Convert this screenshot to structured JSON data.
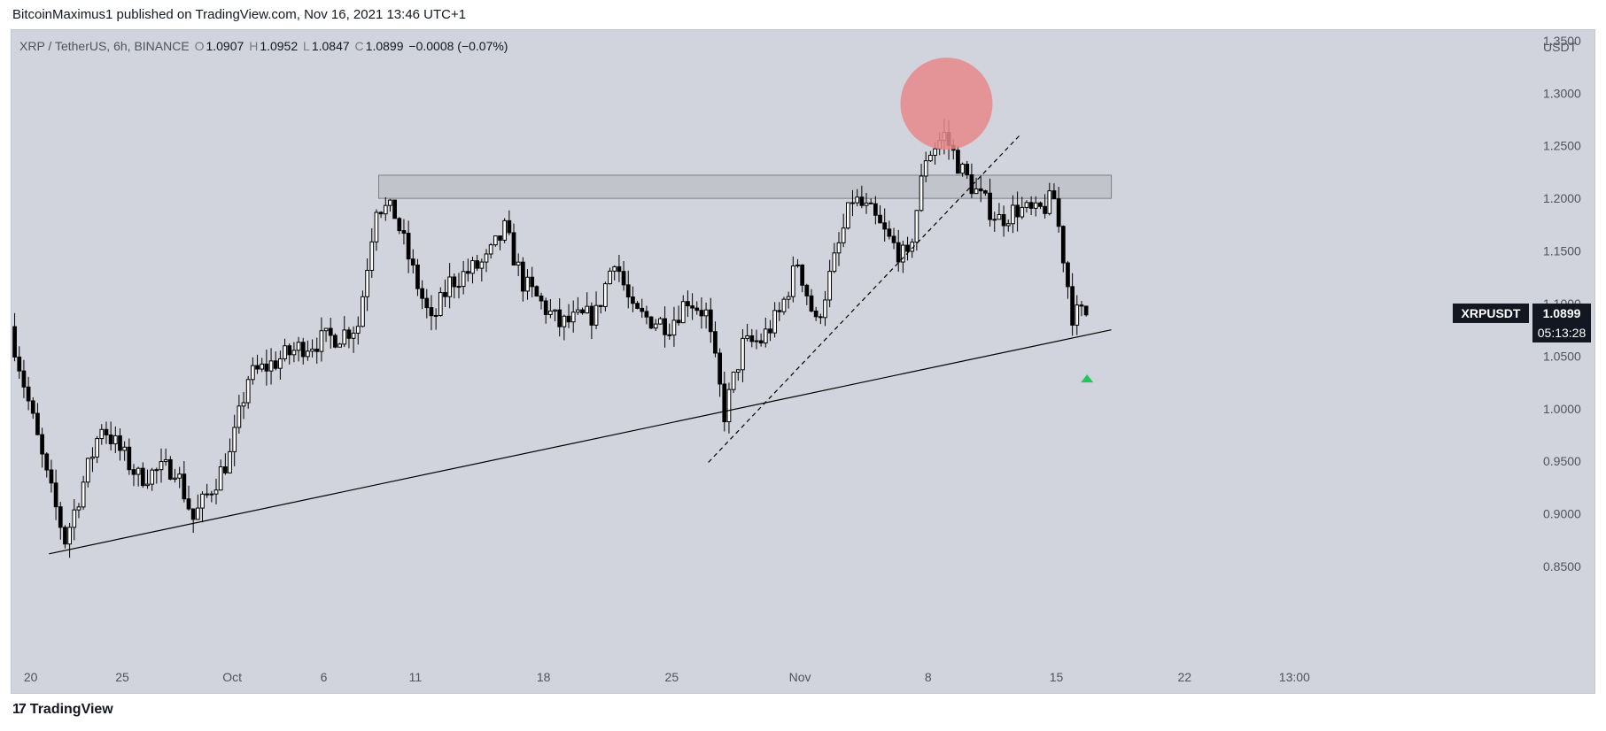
{
  "header": {
    "publisher_line": "BitcoinMaximus1 published on TradingView.com, Nov 16, 2021 13:46 UTC+1"
  },
  "legend": {
    "symbol": "XRP / TetherUS, 6h, BINANCE",
    "o_label": "O",
    "o_value": "1.0907",
    "h_label": "H",
    "h_value": "1.0952",
    "l_label": "L",
    "l_value": "1.0847",
    "c_label": "C",
    "c_value": "1.0899",
    "change": "−0.0008 (−0.07%)"
  },
  "footer": {
    "brand": "TradingView",
    "logo_icon": "tradingview-logo-icon"
  },
  "colors": {
    "background": "#d1d4dc",
    "up_candle": "#ffffff",
    "down_candle": "#000000",
    "zone_fill": "#c2c4cc",
    "highlight_circle": "#e8888a",
    "marker": "#22c55e",
    "price_tag": "#131722"
  },
  "chart_data": {
    "type": "candlestick",
    "currency_label": "USDT",
    "y_ticks": [
      "1.3500",
      "1.3000",
      "1.2500",
      "1.2000",
      "1.1500",
      "1.1000",
      "1.0500",
      "1.0000",
      "0.9500",
      "0.9000",
      "0.8500"
    ],
    "ylim": [
      0.845,
      1.36
    ],
    "x_ticks": [
      {
        "label": "20",
        "date": "2021-09-20"
      },
      {
        "label": "25",
        "date": "2021-09-25"
      },
      {
        "label": "Oct",
        "date": "2021-10-01"
      },
      {
        "label": "6",
        "date": "2021-10-06"
      },
      {
        "label": "11",
        "date": "2021-10-11"
      },
      {
        "label": "18",
        "date": "2021-10-18"
      },
      {
        "label": "25",
        "date": "2021-10-25"
      },
      {
        "label": "Nov",
        "date": "2021-11-01"
      },
      {
        "label": "8",
        "date": "2021-11-08"
      },
      {
        "label": "15",
        "date": "2021-11-15"
      },
      {
        "label": "22",
        "date": "2021-11-22"
      },
      {
        "label": "13:00",
        "date": "2021-11-28"
      }
    ],
    "xlim": [
      "2021-09-19",
      "2021-11-29"
    ],
    "price_tag": {
      "symbol": "XRPUSDT",
      "value": "1.0899",
      "countdown": "05:13:28",
      "price": 1.0899
    },
    "anchors": [
      {
        "date": "2021-09-19",
        "price": 1.078
      },
      {
        "date": "2021-09-21",
        "price": 0.935
      },
      {
        "date": "2021-09-22",
        "price": 0.875
      },
      {
        "date": "2021-09-24",
        "price": 0.985
      },
      {
        "date": "2021-09-26",
        "price": 0.935
      },
      {
        "date": "2021-09-28",
        "price": 0.945
      },
      {
        "date": "2021-09-29",
        "price": 0.895
      },
      {
        "date": "2021-10-01",
        "price": 0.955
      },
      {
        "date": "2021-10-02",
        "price": 1.03
      },
      {
        "date": "2021-10-05",
        "price": 1.06
      },
      {
        "date": "2021-10-07",
        "price": 1.07
      },
      {
        "date": "2021-10-08",
        "price": 1.08
      },
      {
        "date": "2021-10-09",
        "price": 1.195
      },
      {
        "date": "2021-10-10",
        "price": 1.185
      },
      {
        "date": "2021-10-11",
        "price": 1.13
      },
      {
        "date": "2021-10-12",
        "price": 1.08
      },
      {
        "date": "2021-10-13",
        "price": 1.12
      },
      {
        "date": "2021-10-15",
        "price": 1.14
      },
      {
        "date": "2021-10-16",
        "price": 1.17
      },
      {
        "date": "2021-10-17",
        "price": 1.12
      },
      {
        "date": "2021-10-19",
        "price": 1.08
      },
      {
        "date": "2021-10-21",
        "price": 1.09
      },
      {
        "date": "2021-10-22",
        "price": 1.145
      },
      {
        "date": "2021-10-23",
        "price": 1.09
      },
      {
        "date": "2021-10-25",
        "price": 1.08
      },
      {
        "date": "2021-10-26",
        "price": 1.105
      },
      {
        "date": "2021-10-27",
        "price": 1.09
      },
      {
        "date": "2021-10-28",
        "price": 0.995
      },
      {
        "date": "2021-10-29",
        "price": 1.06
      },
      {
        "date": "2021-10-30",
        "price": 1.065
      },
      {
        "date": "2021-10-31",
        "price": 1.09
      },
      {
        "date": "2021-11-01",
        "price": 1.14
      },
      {
        "date": "2021-11-02",
        "price": 1.08
      },
      {
        "date": "2021-11-03",
        "price": 1.14
      },
      {
        "date": "2021-11-04",
        "price": 1.2
      },
      {
        "date": "2021-11-05",
        "price": 1.185
      },
      {
        "date": "2021-11-06",
        "price": 1.16
      },
      {
        "date": "2021-11-07",
        "price": 1.14
      },
      {
        "date": "2021-11-08",
        "price": 1.24
      },
      {
        "date": "2021-11-09",
        "price": 1.26
      },
      {
        "date": "2021-11-10",
        "price": 1.225
      },
      {
        "date": "2021-11-11",
        "price": 1.2
      },
      {
        "date": "2021-11-12",
        "price": 1.18
      },
      {
        "date": "2021-11-13",
        "price": 1.19
      },
      {
        "date": "2021-11-14",
        "price": 1.185
      },
      {
        "date": "2021-11-15",
        "price": 1.2
      },
      {
        "date": "2021-11-16",
        "price": 1.09
      }
    ],
    "resistance_zone": {
      "start": "2021-10-09",
      "end": "2021-11-18",
      "low": 1.2,
      "high": 1.222
    },
    "support_line": {
      "start": {
        "date": "2021-09-21",
        "price": 0.862
      },
      "end": {
        "date": "2021-11-18",
        "price": 1.075
      }
    },
    "dashed_line": {
      "start": {
        "date": "2021-10-27",
        "price": 0.949
      },
      "end": {
        "date": "2021-11-13",
        "price": 1.26
      }
    },
    "highlight_circle": {
      "date": "2021-11-09",
      "price": 1.29
    },
    "marker": {
      "date": "2021-11-16",
      "price": 1.03
    }
  }
}
